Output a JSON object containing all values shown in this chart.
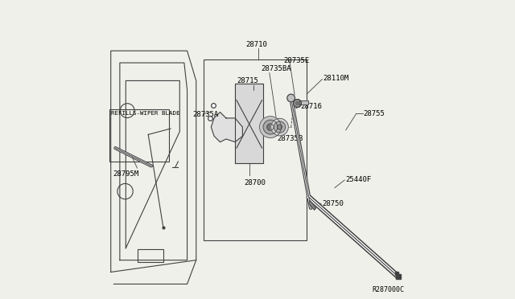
{
  "bg_color": "#f0f0eb",
  "line_color": "#404040",
  "text_color": "#000000",
  "diagram_ref": "R287000C",
  "title_label": "28710",
  "refills_label": "REFILLS-WIPER BLADE",
  "fs": 6.5,
  "lw": 0.8
}
